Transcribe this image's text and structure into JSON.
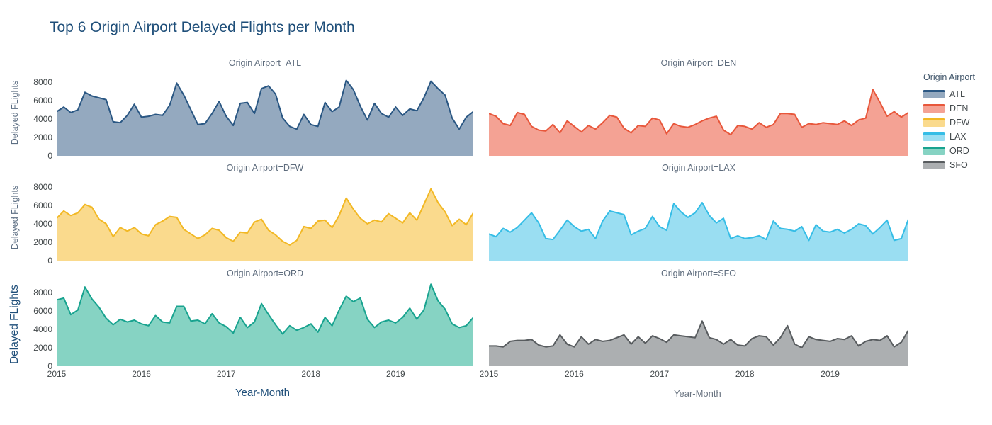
{
  "title": "Top 6 Origin Airport Delayed Flights per Month",
  "axes": {
    "y_tick_labels": [
      "0",
      "2000",
      "4000",
      "6000",
      "8000"
    ],
    "y_tick_values": [
      0,
      2000,
      4000,
      6000,
      8000
    ],
    "x_tick_labels": [
      "2015",
      "2016",
      "2017",
      "2018",
      "2019"
    ],
    "y_label_rows_1_2": "Delayed FLights",
    "y_label_row_3": "Delayed FLights",
    "x_label_left": "Year-Month",
    "x_label_right": "Year-Month"
  },
  "legend": {
    "title": "Origin Airport",
    "items": [
      {
        "label": "ATL",
        "line": "#2a5783",
        "fill": "#94a9bf"
      },
      {
        "label": "DEN",
        "line": "#e8573b",
        "fill": "#f4a294"
      },
      {
        "label": "DFW",
        "line": "#f2b824",
        "fill": "#fada8d"
      },
      {
        "label": "LAX",
        "line": "#35bde6",
        "fill": "#9adef2"
      },
      {
        "label": "ORD",
        "line": "#18a38f",
        "fill": "#86d3c3"
      },
      {
        "label": "SFO",
        "line": "#585c5f",
        "fill": "#acafb1"
      }
    ]
  },
  "chart_data": [
    {
      "type": "area",
      "name": "ATL",
      "facet_title": "Origin Airport=ATL",
      "xlabel": "Year-Month",
      "ylabel": "Delayed FLights",
      "x_range": {
        "start": "2015-01",
        "end": "2019-12",
        "freq": "monthly"
      },
      "ylim": [
        0,
        9200
      ],
      "line_color": "#2a5783",
      "fill_color": "#94a9bf",
      "values": [
        4800,
        5300,
        4700,
        5000,
        6900,
        6500,
        6300,
        6100,
        3700,
        3600,
        4400,
        5600,
        4200,
        4300,
        4500,
        4400,
        5500,
        7900,
        6600,
        5000,
        3400,
        3500,
        4600,
        5900,
        4300,
        3300,
        5700,
        5800,
        4600,
        7300,
        7600,
        6700,
        4100,
        3200,
        2900,
        4500,
        3400,
        3200,
        5800,
        4800,
        5300,
        8200,
        7200,
        5400,
        3900,
        5700,
        4600,
        4200,
        5300,
        4400,
        5100,
        4900,
        6300,
        8100,
        7300,
        6600,
        4100,
        2900,
        4200,
        4800
      ]
    },
    {
      "type": "area",
      "name": "DEN",
      "facet_title": "Origin Airport=DEN",
      "xlabel": "Year-Month",
      "ylabel": "Delayed FLights",
      "x_range": {
        "start": "2015-01",
        "end": "2019-12",
        "freq": "monthly"
      },
      "ylim": [
        0,
        9200
      ],
      "line_color": "#e8573b",
      "fill_color": "#f4a294",
      "values": [
        4600,
        4300,
        3500,
        3300,
        4700,
        4500,
        3200,
        2800,
        2700,
        3400,
        2500,
        3800,
        3200,
        2600,
        3300,
        2900,
        3600,
        4400,
        4200,
        3000,
        2500,
        3300,
        3200,
        4100,
        3900,
        2400,
        3500,
        3200,
        3100,
        3400,
        3800,
        4100,
        4300,
        2800,
        2300,
        3300,
        3200,
        2900,
        3600,
        3100,
        3400,
        4600,
        4600,
        4500,
        3100,
        3500,
        3400,
        3600,
        3500,
        3400,
        3800,
        3300,
        3900,
        4100,
        7200,
        5800,
        4300,
        4800,
        4200,
        4700
      ]
    },
    {
      "type": "area",
      "name": "DFW",
      "facet_title": "Origin Airport=DFW",
      "xlabel": "Year-Month",
      "ylabel": "Delayed FLights",
      "x_range": {
        "start": "2015-01",
        "end": "2019-12",
        "freq": "monthly"
      },
      "ylim": [
        0,
        9200
      ],
      "line_color": "#f2b824",
      "fill_color": "#fada8d",
      "values": [
        4600,
        5400,
        4900,
        5200,
        6100,
        5800,
        4500,
        4000,
        2600,
        3600,
        3200,
        3600,
        2900,
        2700,
        3900,
        4300,
        4800,
        4700,
        3400,
        2900,
        2400,
        2800,
        3500,
        3300,
        2500,
        2100,
        3100,
        3000,
        4200,
        4500,
        3300,
        2800,
        2100,
        1700,
        2200,
        3700,
        3500,
        4300,
        4400,
        3600,
        4900,
        6800,
        5600,
        4600,
        4000,
        4400,
        4200,
        5100,
        4600,
        4100,
        5200,
        4400,
        6100,
        7800,
        6300,
        5300,
        3800,
        4500,
        3900,
        5200
      ]
    },
    {
      "type": "area",
      "name": "LAX",
      "facet_title": "Origin Airport=LAX",
      "xlabel": "Year-Month",
      "ylabel": "Delayed FLights",
      "x_range": {
        "start": "2015-01",
        "end": "2019-12",
        "freq": "monthly"
      },
      "ylim": [
        0,
        9200
      ],
      "line_color": "#35bde6",
      "fill_color": "#9adef2",
      "values": [
        2900,
        2600,
        3500,
        3100,
        3600,
        4400,
        5200,
        4100,
        2400,
        2300,
        3300,
        4400,
        3700,
        3200,
        3400,
        2400,
        4300,
        5400,
        5200,
        5000,
        2800,
        3200,
        3500,
        4800,
        3700,
        3300,
        6200,
        5300,
        4700,
        5200,
        6300,
        4900,
        4100,
        4600,
        2400,
        2700,
        2400,
        2500,
        2700,
        2300,
        4300,
        3500,
        3400,
        3200,
        3700,
        2200,
        3900,
        3200,
        3100,
        3400,
        3000,
        3400,
        4000,
        3800,
        2900,
        3600,
        4400,
        2200,
        2400,
        4500
      ]
    },
    {
      "type": "area",
      "name": "ORD",
      "facet_title": "Origin Airport=ORD",
      "xlabel": "Year-Month",
      "ylabel": "Delayed FLights",
      "x_range": {
        "start": "2015-01",
        "end": "2019-12",
        "freq": "monthly"
      },
      "ylim": [
        0,
        9200
      ],
      "line_color": "#18a38f",
      "fill_color": "#86d3c3",
      "values": [
        7200,
        7400,
        5600,
        6100,
        8600,
        7300,
        6400,
        5200,
        4500,
        5100,
        4800,
        5000,
        4600,
        4400,
        5500,
        4800,
        4700,
        6500,
        6500,
        4900,
        5000,
        4600,
        5700,
        4700,
        4300,
        3600,
        5300,
        4200,
        4800,
        6800,
        5600,
        4500,
        3500,
        4400,
        3900,
        4200,
        4600,
        3700,
        5300,
        4400,
        6100,
        7600,
        7000,
        7400,
        5100,
        4200,
        4800,
        5000,
        4700,
        5300,
        6300,
        5100,
        6100,
        8900,
        7100,
        6200,
        4600,
        4200,
        4400,
        5300
      ]
    },
    {
      "type": "area",
      "name": "SFO",
      "facet_title": "Origin Airport=SFO",
      "xlabel": "Year-Month",
      "ylabel": "Delayed FLights",
      "x_range": {
        "start": "2015-01",
        "end": "2019-12",
        "freq": "monthly"
      },
      "ylim": [
        0,
        9200
      ],
      "line_color": "#585c5f",
      "fill_color": "#acafb1",
      "values": [
        2200,
        2200,
        2100,
        2700,
        2800,
        2800,
        2900,
        2300,
        2100,
        2200,
        3400,
        2400,
        2100,
        3200,
        2400,
        2900,
        2700,
        2800,
        3100,
        3400,
        2400,
        3200,
        2500,
        3300,
        3000,
        2600,
        3400,
        3300,
        3200,
        3100,
        4900,
        3100,
        2900,
        2400,
        2900,
        2300,
        2200,
        3000,
        3300,
        3200,
        2300,
        3100,
        4400,
        2400,
        2000,
        3200,
        2900,
        2800,
        2700,
        3000,
        2900,
        3300,
        2200,
        2700,
        2900,
        2800,
        3300,
        2100,
        2600,
        3900
      ]
    }
  ]
}
